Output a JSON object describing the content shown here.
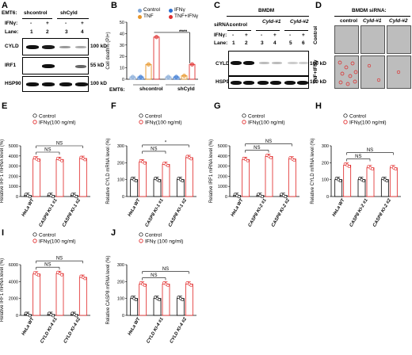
{
  "panel_labels": [
    "A",
    "B",
    "C",
    "D",
    "E",
    "F",
    "G",
    "H",
    "I",
    "J"
  ],
  "panelA": {
    "cell_label": "EMT6:",
    "groups": [
      "shcontrol",
      "shCyld"
    ],
    "ifng_label": "IFNγ:",
    "ifng_states": [
      "-",
      "+",
      "-",
      "+"
    ],
    "lane_label": "Lane:",
    "lanes": [
      "1",
      "2",
      "3",
      "4"
    ],
    "blots": [
      "CYLD",
      "IRF1",
      "HSP90"
    ],
    "markers": [
      "100 kD",
      "55 kD",
      "100 kD"
    ]
  },
  "panelB": {
    "legend": [
      "Control",
      "IFNγ",
      "TNF",
      "TNF+IFNγ"
    ],
    "ylabel": "Cell death% (PI+)",
    "xlabel_prefix": "EMT6:",
    "groups": [
      "shcontrol",
      "shCyld"
    ],
    "significance": "****",
    "colors": {
      "Control": "#7fa6d6",
      "IFNγ": "#2b6fd1",
      "TNF": "#e8962a",
      "TNF+IFNγ": "#e03030"
    }
  },
  "panelC": {
    "title": "BMDM",
    "sirna_label": "siRNA:",
    "sirna_groups": [
      "control",
      "Cyld-#1",
      "Cyld-#2"
    ],
    "ifng_label": "IFNγ:",
    "ifng_states": [
      "-",
      "+",
      "-",
      "+",
      "-",
      "+"
    ],
    "lane_label": "Lane:",
    "lanes": [
      "1",
      "2",
      "3",
      "4",
      "5",
      "6"
    ],
    "blots": [
      "CYLD",
      "HSP90"
    ],
    "markers": [
      "100 kD",
      "100 kD"
    ]
  },
  "panelD": {
    "title": "BMDM siRNA:",
    "columns": [
      "control",
      "Cyld-#1",
      "Cyld-#2"
    ],
    "rows": [
      "Control",
      "TNF+IFNγ"
    ]
  },
  "chart_data": [
    {
      "type": "bar",
      "panel": "B",
      "ylabel": "Cell death% (PI+)",
      "ylim": [
        0,
        50
      ],
      "yticks": [
        0,
        10,
        20,
        30,
        40,
        50
      ],
      "categories": [
        "shcontrol",
        "shCyld"
      ],
      "series": [
        {
          "name": "Control",
          "values": [
            2,
            2
          ]
        },
        {
          "name": "IFNγ",
          "values": [
            2,
            2
          ]
        },
        {
          "name": "TNF",
          "values": [
            13,
            3
          ]
        },
        {
          "name": "TNF+IFNγ",
          "values": [
            37,
            13
          ]
        }
      ]
    },
    {
      "type": "bar",
      "panel": "E",
      "ylabel": "Relative IRF1 mRNA level (%)",
      "ylim": [
        0,
        5000
      ],
      "yticks": [
        0,
        1000,
        2000,
        3000,
        4000,
        5000
      ],
      "categories": [
        "HeLa WT",
        "CASP8 KI-1 #1",
        "CASP8 KI-1 #2"
      ],
      "legend": [
        "Control",
        "IFNγ(100 ng/ml)"
      ],
      "series": [
        {
          "name": "Control",
          "values": [
            100,
            100,
            100
          ]
        },
        {
          "name": "IFNγ(100 ng/ml)",
          "values": [
            3700,
            3650,
            3750
          ]
        }
      ],
      "annotations": [
        "NS",
        "NS"
      ]
    },
    {
      "type": "bar",
      "panel": "F",
      "ylabel": "Relative CYLD mRNA level (%)",
      "ylim": [
        0,
        300
      ],
      "yticks": [
        0,
        100,
        200,
        300
      ],
      "categories": [
        "HeLa WT",
        "CASP8 KI-1 #1",
        "CASP8 KI-1 #2"
      ],
      "legend": [
        "Control",
        "IFNγ(100 ng/ml)"
      ],
      "series": [
        {
          "name": "Control",
          "values": [
            100,
            100,
            100
          ]
        },
        {
          "name": "IFNγ(100 ng/ml)",
          "values": [
            205,
            190,
            230
          ]
        }
      ],
      "annotations": [
        "NS",
        "*"
      ]
    },
    {
      "type": "bar",
      "panel": "G",
      "ylabel": "Relative IRF1 mRNA level (%)",
      "ylim": [
        0,
        5000
      ],
      "yticks": [
        0,
        1000,
        2000,
        3000,
        4000,
        5000
      ],
      "categories": [
        "HeLa WT",
        "CASP8 KI-2 #1",
        "CASP8 KI-2 #2"
      ],
      "legend": [
        "Control",
        "IFNγ(100 ng/ml)"
      ],
      "series": [
        {
          "name": "Control",
          "values": [
            100,
            100,
            100
          ]
        },
        {
          "name": "IFNγ(100 ng/ml)",
          "values": [
            3650,
            3950,
            3700
          ]
        }
      ],
      "annotations": [
        "NS",
        "NS"
      ]
    },
    {
      "type": "bar",
      "panel": "H",
      "ylabel": "Relative CYLD mRNA level (%)",
      "ylim": [
        0,
        300
      ],
      "yticks": [
        0,
        100,
        200,
        300
      ],
      "categories": [
        "HeLa WT",
        "CASP8 KI-2 #1",
        "CASP8 KI-2 #2"
      ],
      "legend": [
        "Control",
        "IFNγ(100 ng/ml)"
      ],
      "series": [
        {
          "name": "Control",
          "values": [
            100,
            100,
            100
          ]
        },
        {
          "name": "IFNγ(100 ng/ml)",
          "values": [
            185,
            170,
            170
          ]
        }
      ],
      "annotations": [
        "NS",
        "NS"
      ]
    },
    {
      "type": "bar",
      "panel": "I",
      "ylabel": "Relative IRF1 mRNA level (%)",
      "ylim": [
        0,
        6000
      ],
      "yticks": [
        0,
        2000,
        4000,
        6000
      ],
      "categories": [
        "HeLa WT",
        "CYLD KI-4 #1",
        "CYLD KI-4 #2"
      ],
      "legend": [
        "Control",
        "IFNγ(100 ng/ml)"
      ],
      "series": [
        {
          "name": "Control",
          "values": [
            100,
            100,
            100
          ]
        },
        {
          "name": "IFNγ(100 ng/ml)",
          "values": [
            4900,
            4950,
            4500
          ]
        }
      ],
      "annotations": [
        "NS",
        "NS"
      ]
    },
    {
      "type": "bar",
      "panel": "J",
      "ylabel": "Relative CASP8 mRNA level (%)",
      "ylim": [
        0,
        300
      ],
      "yticks": [
        0,
        100,
        200,
        300
      ],
      "categories": [
        "HeLa WT",
        "CYLD KI-4 #1",
        "CYLD KI-4 #2"
      ],
      "legend": [
        "Control",
        "IFNγ (100 ng/ml)"
      ],
      "series": [
        {
          "name": "Control",
          "values": [
            100,
            100,
            100
          ]
        },
        {
          "name": "IFNγ (100 ng/ml)",
          "values": [
            185,
            185,
            185
          ]
        }
      ],
      "annotations": [
        "NS",
        "NS"
      ]
    }
  ]
}
